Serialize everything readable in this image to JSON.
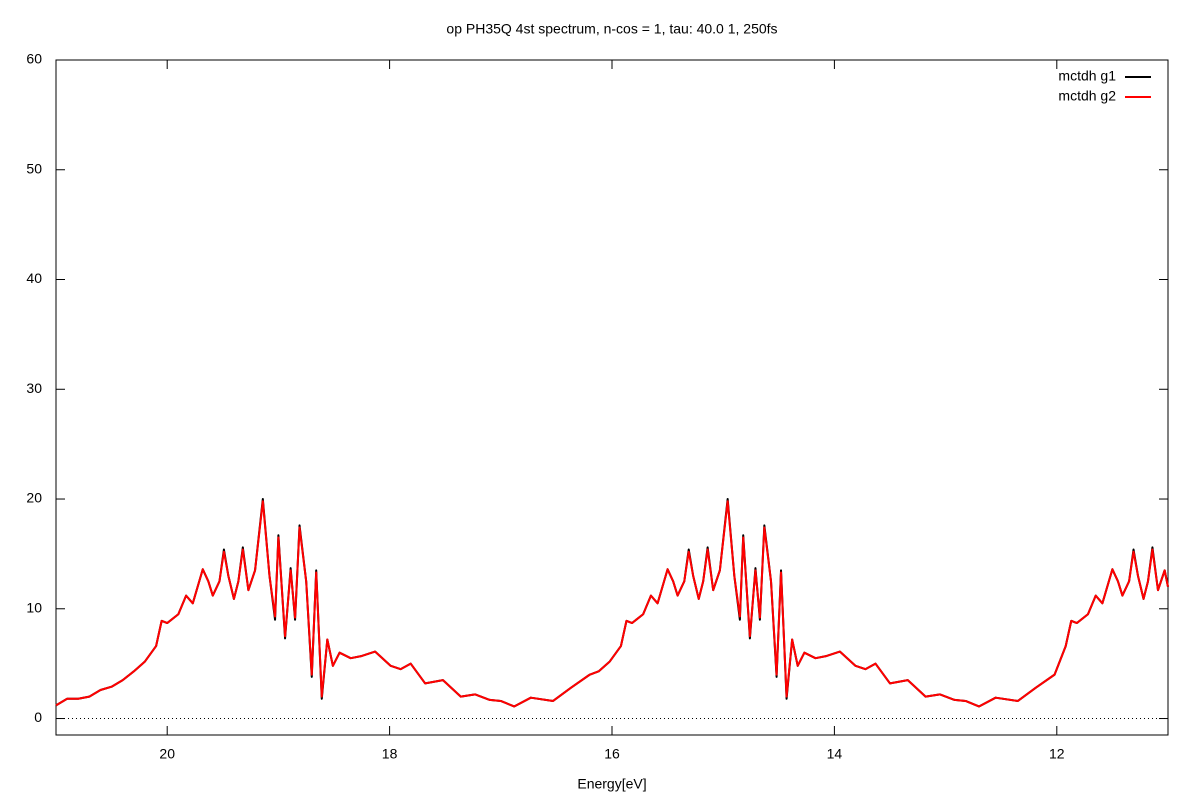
{
  "chart_data": {
    "type": "line",
    "title": "op PH35Q 4st spectrum, n-cos = 1, tau: 40.0 1, 250fs",
    "x_label": "Energy[eV]",
    "xlim": [
      21,
      11
    ],
    "xticks": [
      20,
      18,
      16,
      14,
      12
    ],
    "ylim": [
      -1.5,
      60
    ],
    "yticks": [
      0,
      10,
      20,
      30,
      40,
      50,
      60
    ],
    "zeroaxis": true,
    "legend": "top-right",
    "x": [
      21.0,
      20.9,
      20.8,
      20.7,
      20.6,
      20.5,
      20.4,
      20.3,
      20.2,
      20.1,
      20.05,
      20.0,
      19.9,
      19.83,
      19.77,
      19.68,
      19.63,
      19.59,
      19.53,
      19.49,
      19.45,
      19.4,
      19.36,
      19.32,
      19.27,
      19.21,
      19.14,
      19.08,
      19.03,
      19.0,
      18.94,
      18.89,
      18.85,
      18.81,
      18.75,
      18.7,
      18.66,
      18.61,
      18.56,
      18.51,
      18.45,
      18.35,
      18.25,
      18.13,
      17.99,
      17.9,
      17.81,
      17.68,
      17.52,
      17.36,
      17.23,
      17.1,
      17.0,
      16.88,
      16.73,
      16.53,
      16.37,
      16.2,
      16.12,
      16.02,
      15.92,
      15.87,
      15.82,
      15.72,
      15.65,
      15.59,
      15.5,
      15.45,
      15.41,
      15.35,
      15.31,
      15.27,
      15.22,
      15.18,
      15.14,
      15.09,
      15.03,
      14.96,
      14.9,
      14.85,
      14.82,
      14.76,
      14.71,
      14.67,
      14.63,
      14.57,
      14.52,
      14.48,
      14.43,
      14.38,
      14.33,
      14.27,
      14.17,
      14.07,
      13.95,
      13.81,
      13.72,
      13.63,
      13.5,
      13.34,
      13.18,
      13.05,
      12.92,
      12.82,
      12.7,
      12.55,
      12.35,
      12.19,
      12.02,
      11.92,
      11.87,
      11.82,
      11.72,
      11.65,
      11.59,
      11.5,
      11.45,
      11.41,
      11.35,
      11.31,
      11.27,
      11.22,
      11.18,
      11.14,
      11.09,
      11.03,
      11.0
    ],
    "series": [
      {
        "name": "mctdh g1",
        "color": "#000000",
        "values": [
          1.2,
          1.8,
          1.8,
          2.0,
          2.6,
          2.9,
          3.5,
          4.3,
          5.2,
          6.6,
          8.9,
          8.7,
          9.5,
          11.2,
          10.5,
          13.6,
          12.5,
          11.2,
          12.5,
          15.4,
          13,
          10.9,
          12.5,
          15.6,
          11.7,
          13.5,
          20.0,
          13,
          9.0,
          16.7,
          7.3,
          13.7,
          9.0,
          17.6,
          12.5,
          3.8,
          13.5,
          1.8,
          7.2,
          4.8,
          6.0,
          5.5,
          5.7,
          6.1,
          4.8,
          4.5,
          5.0,
          3.2,
          3.5,
          2.0,
          2.2,
          1.7,
          1.6,
          1.1,
          1.9,
          1.6,
          2.8,
          4.0,
          4.3,
          5.2,
          6.6,
          8.9,
          8.7,
          9.5,
          11.2,
          10.5,
          13.6,
          12.5,
          11.2,
          12.5,
          15.4,
          13,
          10.9,
          12.5,
          15.6,
          11.7,
          13.5,
          20.0,
          13,
          9.0,
          16.7,
          7.3,
          13.7,
          9.0,
          17.6,
          12.5,
          3.8,
          13.5,
          1.8,
          7.2,
          4.8,
          6.0,
          5.5,
          5.7,
          6.1,
          4.8,
          4.5,
          5.0,
          3.2,
          3.5,
          2.0,
          2.2,
          1.7,
          1.6,
          1.1,
          1.9,
          1.6,
          2.8,
          4.0,
          6.6,
          8.9,
          8.7,
          9.5,
          11.2,
          10.5,
          13.6,
          12.5,
          11.2,
          12.5,
          15.4,
          13,
          10.9,
          12.5,
          15.6,
          11.7,
          13.5,
          12.0
        ]
      },
      {
        "name": "mctdh g2",
        "color": "#ff0000",
        "values": [
          1.2,
          1.8,
          1.8,
          2.0,
          2.6,
          2.9,
          3.5,
          4.3,
          5.2,
          6.6,
          8.9,
          8.7,
          9.5,
          11.2,
          10.5,
          13.6,
          12.5,
          11.2,
          12.5,
          15.2,
          13,
          10.9,
          12.5,
          15.4,
          11.7,
          13.5,
          19.8,
          13,
          9.3,
          16.5,
          7.5,
          13.5,
          9.2,
          17.4,
          12.5,
          4.0,
          13.3,
          2.0,
          7.2,
          4.8,
          6.0,
          5.5,
          5.7,
          6.1,
          4.8,
          4.5,
          5.0,
          3.2,
          3.5,
          2.0,
          2.2,
          1.7,
          1.6,
          1.1,
          1.9,
          1.6,
          2.8,
          4.0,
          4.3,
          5.2,
          6.6,
          8.9,
          8.7,
          9.5,
          11.2,
          10.5,
          13.6,
          12.5,
          11.2,
          12.5,
          15.2,
          13,
          10.9,
          12.5,
          15.4,
          11.7,
          13.5,
          19.8,
          13,
          9.3,
          16.5,
          7.5,
          13.5,
          9.2,
          17.4,
          12.5,
          4.0,
          13.3,
          2.0,
          7.2,
          4.8,
          6.0,
          5.5,
          5.7,
          6.1,
          4.8,
          4.5,
          5.0,
          3.2,
          3.5,
          2.0,
          2.2,
          1.7,
          1.6,
          1.1,
          1.9,
          1.6,
          2.8,
          4.0,
          6.6,
          8.9,
          8.7,
          9.5,
          11.2,
          10.5,
          13.6,
          12.5,
          11.2,
          12.5,
          15.2,
          13,
          10.9,
          12.5,
          15.4,
          11.7,
          13.5,
          12.0
        ]
      }
    ]
  }
}
